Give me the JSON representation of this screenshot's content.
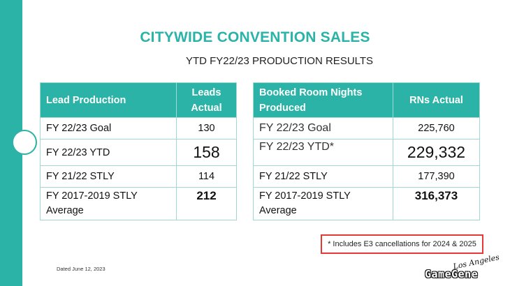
{
  "title": "CITYWIDE CONVENTION SALES",
  "subtitle": "YTD FY22/23 PRODUCTION RESULTS",
  "lead_table": {
    "headers": [
      "Lead Production",
      "Leads Actual"
    ],
    "rows": [
      {
        "label": "FY 22/23 Goal",
        "value": "130"
      },
      {
        "label": "FY 22/23 YTD",
        "value": "158"
      },
      {
        "label": "FY 21/22 STLY",
        "value": "114"
      },
      {
        "label": "FY 2017-2019 STLY Average",
        "value": "212"
      }
    ]
  },
  "rn_table": {
    "headers": [
      "Booked Room Nights Produced",
      "RNs Actual"
    ],
    "rows": [
      {
        "label": "FY 22/23 Goal",
        "value": "225,760"
      },
      {
        "label": "FY 22/23 YTD*",
        "value": "229,332"
      },
      {
        "label": "FY 21/22 STLY",
        "value": "177,390"
      },
      {
        "label": "FY 2017-2019 STLY Average",
        "value": "316,373"
      }
    ]
  },
  "footnote": "* Includes E3 cancellations for 2024 & 2025",
  "dated": "Dated June 12, 2023",
  "logo": {
    "script_text": "Los Angeles",
    "game_text": "GameGene"
  },
  "colors": {
    "accent": "#2ab3a6",
    "highlight_border": "#e53935"
  }
}
